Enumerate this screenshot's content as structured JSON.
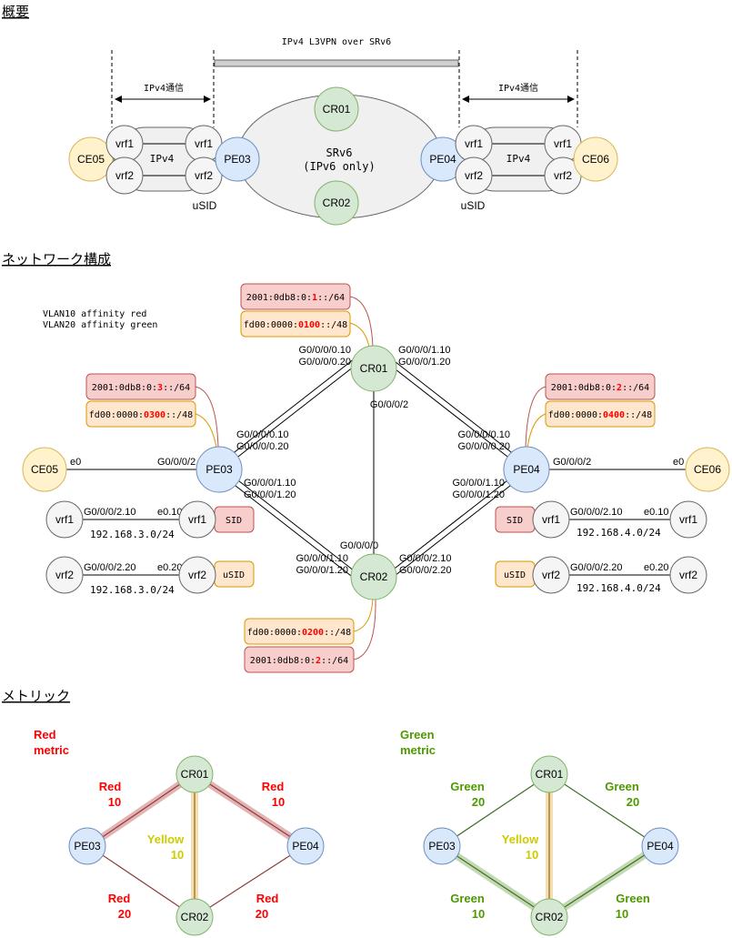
{
  "colors": {
    "router_green_fill": "#d5e8d4",
    "router_green_stroke": "#82b366",
    "pe_blue_fill": "#dae8fc",
    "pe_blue_stroke": "#6c8ebf",
    "ce_yellow_fill": "#fff2cc",
    "ce_yellow_stroke": "#d6b656",
    "vrf_fill": "#f5f5f5",
    "vrf_stroke": "#666666",
    "red_box_fill": "#f8cecc",
    "red_box_stroke": "#b85450",
    "orange_box_fill": "#ffe6cc",
    "orange_box_stroke": "#d79b00",
    "red_text": "#ff0000",
    "green_text": "#4d9900",
    "yellow_text": "#cccc00"
  },
  "overview": {
    "heading": "概要",
    "span_label": "IPv4 L3VPN over SRv6",
    "left_comm": "IPv4通信",
    "right_comm": "IPv4通信",
    "cloud_line1": "SRv6",
    "cloud_line2": "(IPv6 only)",
    "left_cloud_label": "IPv4",
    "right_cloud_label": "IPv4",
    "left_usid": "uSID",
    "right_usid": "uSID",
    "nodes": {
      "ce05": "CE05",
      "ce06": "CE06",
      "pe03": "PE03",
      "pe04": "PE04",
      "cr01": "CR01",
      "cr02": "CR02",
      "l_vrf1_a": "vrf1",
      "l_vrf2_a": "vrf2",
      "l_vrf1_b": "vrf1",
      "l_vrf2_b": "vrf2",
      "r_vrf1_a": "vrf1",
      "r_vrf2_a": "vrf2",
      "r_vrf1_b": "vrf1",
      "r_vrf2_b": "vrf2"
    }
  },
  "network": {
    "heading": "ネットワーク構成",
    "note_line1": "VLAN10 affinity red",
    "note_line2": "VLAN20 affinity green",
    "nodes": {
      "cr01": "CR01",
      "cr02": "CR02",
      "pe03": "PE03",
      "pe04": "PE04",
      "ce05": "CE05",
      "ce06": "CE06",
      "pe03_vrf1": "vrf1",
      "pe03_vrf2": "vrf2",
      "ce05_vrf1": "vrf1",
      "ce05_vrf2": "vrf2",
      "pe04_vrf1": "vrf1",
      "pe04_vrf2": "vrf2",
      "ce06_vrf1": "vrf1",
      "ce06_vrf2": "vrf2"
    },
    "cr01_prefix_red": {
      "pre": "2001:0db8:0:",
      "hi": "1",
      "post": "::/64"
    },
    "cr01_prefix_orange": {
      "pre": "fd00:0000:",
      "hi": "0100",
      "post": "::/48"
    },
    "pe03_prefix_red": {
      "pre": "2001:0db8:0:",
      "hi": "3",
      "post": "::/64"
    },
    "pe03_prefix_orange": {
      "pre": "fd00:0000:",
      "hi": "0300",
      "post": "::/48"
    },
    "pe04_prefix_red": {
      "pre": "2001:0db8:0:",
      "hi": "2",
      "post": "::/64"
    },
    "pe04_prefix_orange": {
      "pre": "fd00:0000:",
      "hi": "0400",
      "post": "::/48"
    },
    "cr02_prefix_orange": {
      "pre": "fd00:0000:",
      "hi": "0200",
      "post": "::/48"
    },
    "cr02_prefix_red": {
      "pre": "2001:0db8:0:",
      "hi": "2",
      "post": "::/64"
    },
    "ifaces": {
      "cr01_left_1": "G0/0/0/0.10",
      "cr01_left_2": "G0/0/0/0.20",
      "cr01_right_1": "G0/0/0/1.10",
      "cr01_right_2": "G0/0/0/1.20",
      "cr01_down": "G0/0/0/2",
      "pe03_up_1": "G0/0/0/0.10",
      "pe03_up_2": "G0/0/0/0.20",
      "pe03_down_1": "G0/0/0/1.10",
      "pe03_down_2": "G0/0/0/1.20",
      "pe03_ce": "G0/0/0/2",
      "ce05_e0": "e0",
      "pe04_up_1": "G0/0/0/0.10",
      "pe04_up_2": "G0/0/0/0.20",
      "pe04_down_1": "G0/0/0/1.10",
      "pe04_down_2": "G0/0/0/1.20",
      "pe04_ce": "G0/0/0/2",
      "ce06_e0": "e0",
      "cr02_up": "G0/0/0/0",
      "cr02_left_1": "G0/0/0/1.10",
      "cr02_left_2": "G0/0/0/1.20",
      "cr02_right_1": "G0/0/0/2.10",
      "cr02_right_2": "G0/0/0/2.20",
      "l_vrf1_if": "G0/0/0/2.10",
      "l_vrf1_e": "e0.10",
      "l_vrf2_if": "G0/0/0/2.20",
      "l_vrf2_e": "e0.20",
      "r_vrf1_if": "G0/0/0/2.10",
      "r_vrf1_e": "e0.10",
      "r_vrf2_if": "G0/0/0/2.20",
      "r_vrf2_e": "e0.20"
    },
    "subnets": {
      "left_vrf1": "192.168.3.0/24",
      "left_vrf2": "192.168.3.0/24",
      "right_vrf1": "192.168.4.0/24",
      "right_vrf2": "192.168.4.0/24"
    },
    "tags": {
      "left_sid": "SID",
      "left_usid": "uSID",
      "right_sid": "SID",
      "right_usid": "uSID"
    }
  },
  "metrics": {
    "heading": "メトリック",
    "red": {
      "title_1": "Red",
      "title_2": "metric",
      "nodes": {
        "cr01": "CR01",
        "cr02": "CR02",
        "pe03": "PE03",
        "pe04": "PE04"
      },
      "tl": {
        "name": "Red",
        "value": "10"
      },
      "tr": {
        "name": "Red",
        "value": "10"
      },
      "bl": {
        "name": "Red",
        "value": "20"
      },
      "br": {
        "name": "Red",
        "value": "20"
      },
      "mid": {
        "name": "Yellow",
        "value": "10"
      }
    },
    "green": {
      "title_1": "Green",
      "title_2": "metric",
      "nodes": {
        "cr01": "CR01",
        "cr02": "CR02",
        "pe03": "PE03",
        "pe04": "PE04"
      },
      "tl": {
        "name": "Green",
        "value": "20"
      },
      "tr": {
        "name": "Green",
        "value": "20"
      },
      "bl": {
        "name": "Green",
        "value": "10"
      },
      "br": {
        "name": "Green",
        "value": "10"
      },
      "mid": {
        "name": "Yellow",
        "value": "10"
      }
    }
  }
}
